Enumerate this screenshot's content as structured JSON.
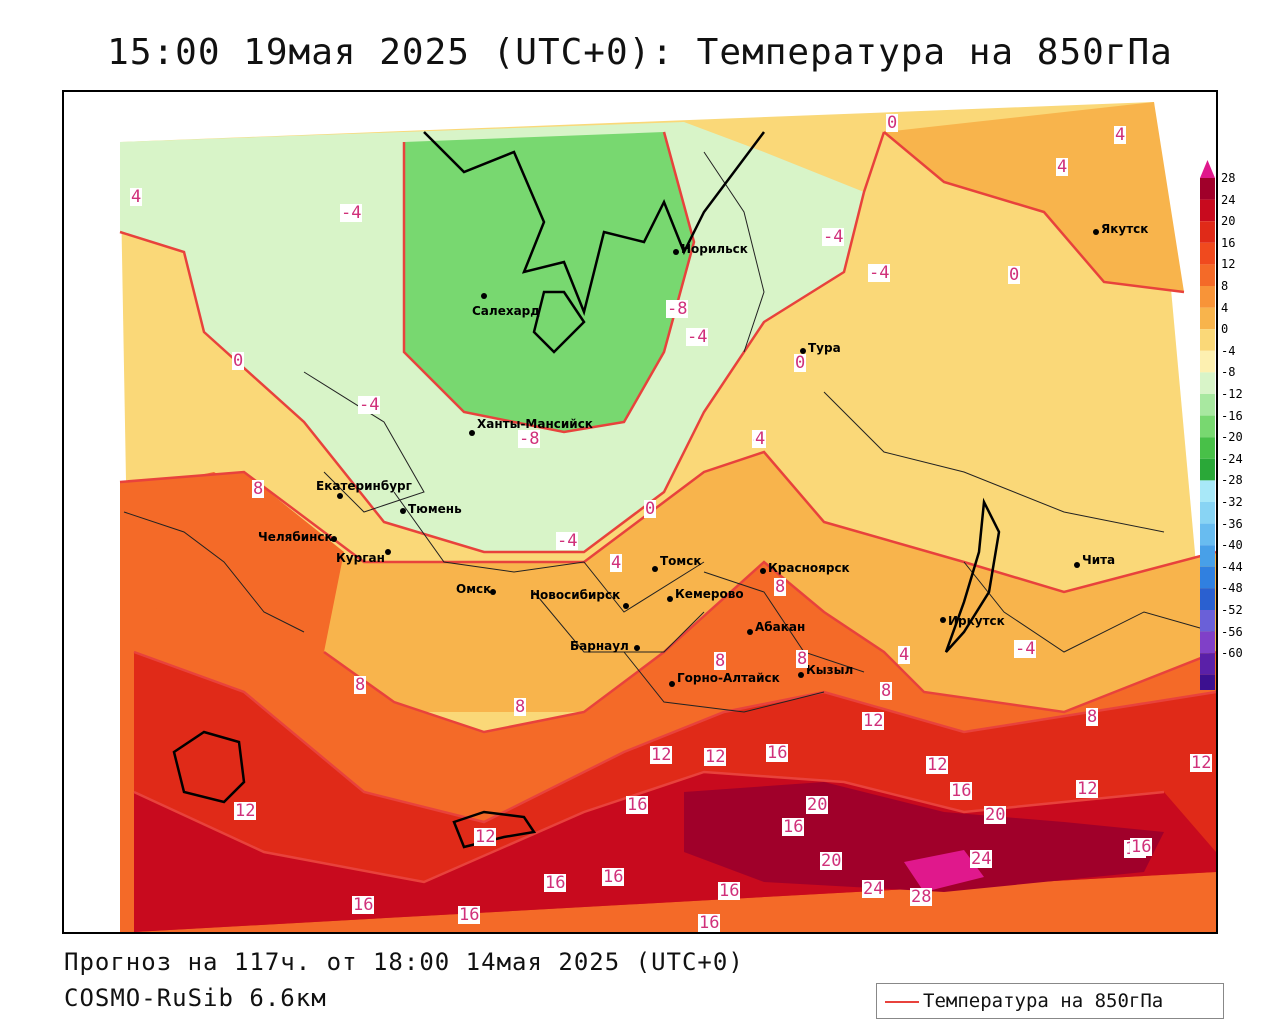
{
  "title": "15:00 19мая 2025 (UTC+0): Температура на 850гПа",
  "footer": {
    "forecast": "Прогноз на 117ч. от 18:00 14мая 2025 (UTC+0)",
    "model": "COSMO-RuSib 6.6км"
  },
  "legend": {
    "label": "Температура на 850гПа",
    "color": "#e8423c"
  },
  "colorbar": {
    "ticks": [
      "28",
      "24",
      "20",
      "16",
      "12",
      "8",
      "4",
      "0",
      "-4",
      "-8",
      "-12",
      "-16",
      "-20",
      "-24",
      "-28",
      "-32",
      "-36",
      "-40",
      "-44",
      "-48",
      "-52",
      "-56",
      "-60"
    ],
    "colors": [
      "#a0002a",
      "#c80a1e",
      "#e02a18",
      "#f04a1e",
      "#f46a28",
      "#f89438",
      "#f8b44c",
      "#fad878",
      "#fdf0b0",
      "#d8f4c8",
      "#a8e8a0",
      "#78d870",
      "#48c048",
      "#2aa838",
      "#a8e8f8",
      "#88d4f4",
      "#68bcf0",
      "#48a0e8",
      "#3080e0",
      "#2a60d0",
      "#6a60d8",
      "#8040c8",
      "#5a20a8",
      "#3c1090"
    ],
    "top_color": "#e0188c",
    "bottom_color": "#a040d0"
  },
  "cities": [
    {
      "name": "Норильск"
    },
    {
      "name": "Салехард"
    },
    {
      "name": "Тура"
    },
    {
      "name": "Якутск"
    },
    {
      "name": "Ханты-Мансийск"
    },
    {
      "name": "Екатеринбург"
    },
    {
      "name": "Тюмень"
    },
    {
      "name": "Челябинск"
    },
    {
      "name": "Курган"
    },
    {
      "name": "Омск"
    },
    {
      "name": "Новосибирск"
    },
    {
      "name": "Томск"
    },
    {
      "name": "Кемерово"
    },
    {
      "name": "Красноярск"
    },
    {
      "name": "Барнаул"
    },
    {
      "name": "Абакан"
    },
    {
      "name": "Горно-Алтайск"
    },
    {
      "name": "Кызыл"
    },
    {
      "name": "Иркутск"
    },
    {
      "name": "Чита"
    }
  ],
  "contour_labels": [
    "4",
    "-4",
    "0",
    "-4",
    "-8",
    "-4",
    "-4",
    "0",
    "4",
    "4",
    "0",
    "-4",
    "-8",
    "0",
    "4",
    "8",
    "-4",
    "4",
    "8",
    "0",
    "-4",
    "8",
    "8",
    "8",
    "8",
    "8",
    "4",
    "4",
    "12",
    "8",
    "12",
    "12",
    "12",
    "16",
    "16",
    "16",
    "20",
    "12",
    "12",
    "16",
    "16",
    "20",
    "20",
    "24",
    "24",
    "28",
    "16",
    "16",
    "16",
    "16",
    "16",
    "16",
    "16",
    "12",
    "12"
  ]
}
